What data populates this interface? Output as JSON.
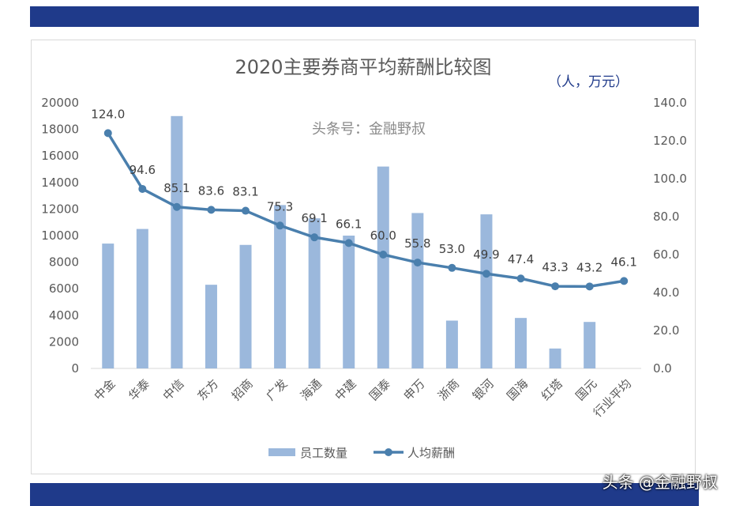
{
  "chart_data": {
    "type": "bar+line",
    "title": "2020主要券商平均薪酬比较图",
    "unit_note": "（人，万元）",
    "watermark": "头条号：金融野叔",
    "categories": [
      "中金",
      "华泰",
      "中信",
      "东方",
      "招商",
      "广发",
      "海通",
      "中建",
      "国泰",
      "申万",
      "浙商",
      "银河",
      "国海",
      "红塔",
      "国元",
      "行业平均"
    ],
    "series": [
      {
        "name": "员工数量",
        "type": "bar",
        "axis": "left",
        "color": "#9bb8dc",
        "values": [
          9400,
          10500,
          19000,
          6300,
          9300,
          12300,
          11300,
          10000,
          15200,
          11700,
          3600,
          11600,
          3800,
          1500,
          3500,
          null
        ]
      },
      {
        "name": "人均薪酬",
        "type": "line",
        "axis": "right",
        "color": "#4a7fad",
        "values": [
          124.0,
          94.6,
          85.1,
          83.6,
          83.1,
          75.3,
          69.1,
          66.1,
          60.0,
          55.8,
          53.0,
          49.9,
          47.4,
          43.3,
          43.2,
          46.1
        ],
        "labels": [
          "124.0",
          "94.6",
          "85.1",
          "83.6",
          "83.1",
          "75.3",
          "69.1",
          "66.1",
          "60.0",
          "55.8",
          "53.0",
          "49.9",
          "47.4",
          "43.3",
          "43.2",
          "46.1"
        ]
      }
    ],
    "y_left": {
      "min": 0,
      "max": 20000,
      "ticks": [
        "0",
        "2000",
        "4000",
        "6000",
        "8000",
        "10000",
        "12000",
        "14000",
        "16000",
        "18000",
        "20000"
      ]
    },
    "y_right": {
      "min": 0,
      "max": 140,
      "ticks": [
        "0.0",
        "20.0",
        "40.0",
        "60.0",
        "80.0",
        "100.0",
        "120.0",
        "140.0"
      ]
    },
    "legend_position": "bottom",
    "grid": false
  },
  "footer": {
    "watermark": "头条 @金融野叔"
  },
  "colors": {
    "band": "#1f3a8a",
    "bar": "#9bb8dc",
    "line": "#4a7fad"
  }
}
